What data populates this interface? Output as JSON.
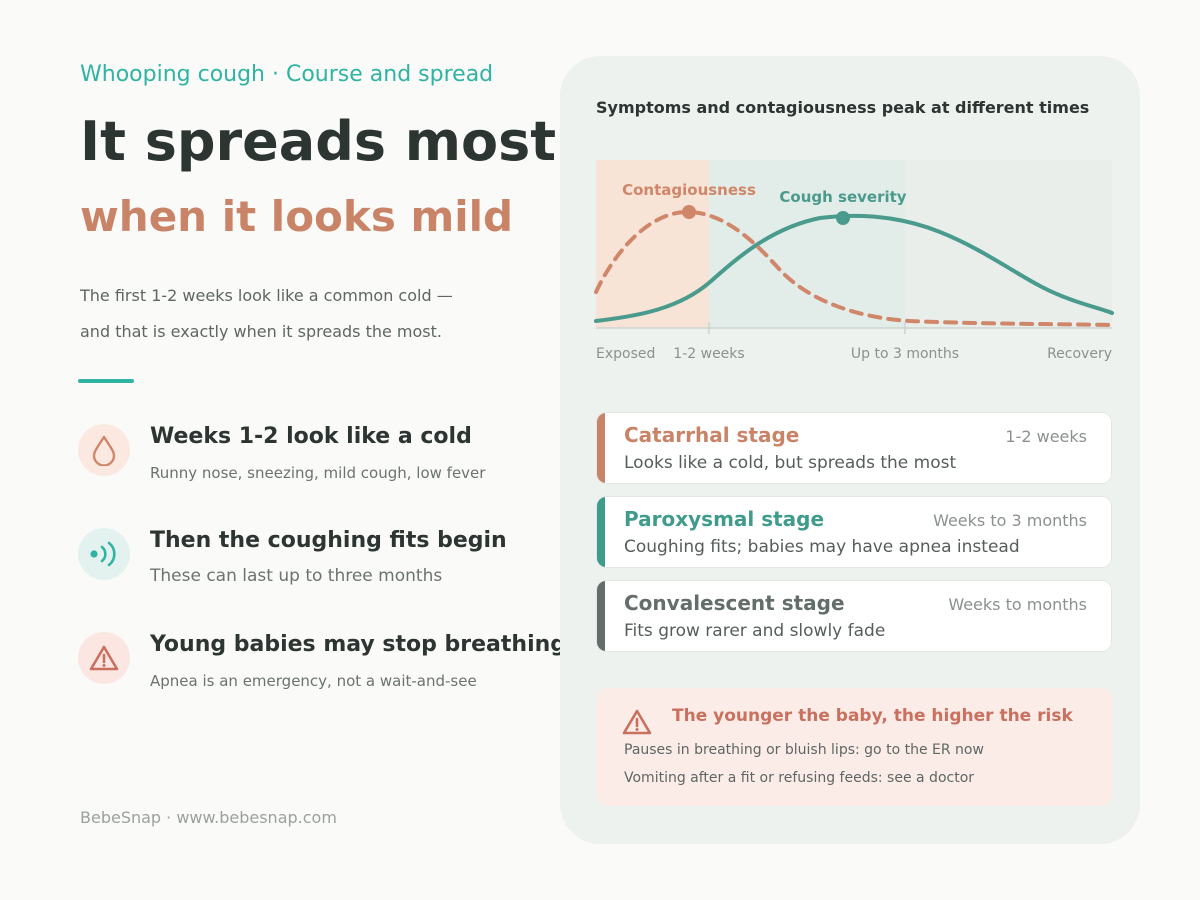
{
  "header": {
    "eyebrow": "Whooping cough · Course and spread",
    "title_line1": "It spreads most",
    "title_line2": "when it looks mild",
    "intro_line1": "The first 1-2 weeks look like a common cold —",
    "intro_line2": "and that is exactly when it spreads the most."
  },
  "features": [
    {
      "icon": "droplet-icon",
      "title": "Weeks 1-2 look like a cold",
      "subtitle": "Runny nose, sneezing, mild cough, low fever"
    },
    {
      "icon": "sound-waves-icon",
      "title": "Then the coughing fits begin",
      "subtitle": "These can last up to three months"
    },
    {
      "icon": "warning-icon",
      "title": "Young babies may stop breathing",
      "subtitle": "Apnea is an emergency, not a wait-and-see"
    }
  ],
  "footer": "BebeSnap · www.bebesnap.com",
  "chart_data": {
    "type": "line",
    "title": "Symptoms and contagiousness peak at different times",
    "x_ticks": [
      "Exposed",
      "1-2 weeks",
      "Up to 3 months",
      "Recovery"
    ],
    "x": [
      0,
      1,
      2,
      3,
      4,
      5
    ],
    "series": [
      {
        "name": "Contagiousness",
        "style": "dashed",
        "color": "#d08668",
        "values": [
          0.3,
          1.0,
          0.55,
          0.12,
          0.03,
          0.01
        ],
        "peak_index": 1
      },
      {
        "name": "Cough severity",
        "style": "solid",
        "color": "#4a9b8d",
        "values": [
          0.03,
          0.28,
          0.95,
          0.9,
          0.5,
          0.1
        ],
        "peak_index": 2
      }
    ],
    "shaded_phases": [
      "catarrhal",
      "paroxysmal",
      "convalescent"
    ],
    "grid": false
  },
  "stages": [
    {
      "name": "Catarrhal stage",
      "duration": "1-2 weeks",
      "description": "Looks like a cold, but spreads the most",
      "color": "#c98468"
    },
    {
      "name": "Paroxysmal stage",
      "duration": "Weeks to 3 months",
      "description": "Coughing fits; babies may have apnea instead",
      "color": "#3f9b8b"
    },
    {
      "name": "Convalescent stage",
      "duration": "Weeks to months",
      "description": "Fits grow rarer and slowly fade",
      "color": "#636d69"
    }
  ],
  "alert": {
    "title": "The younger the baby, the higher the risk",
    "line1": "Pauses in breathing or bluish lips: go to the ER now",
    "line2": "Vomiting after a fit or refusing feeds: see a doctor"
  },
  "colors": {
    "teal_accent": "#2fb3a3",
    "terracotta": "#c98468",
    "panel_bg": "#eef2ef",
    "alert_bg": "#fbece8"
  }
}
